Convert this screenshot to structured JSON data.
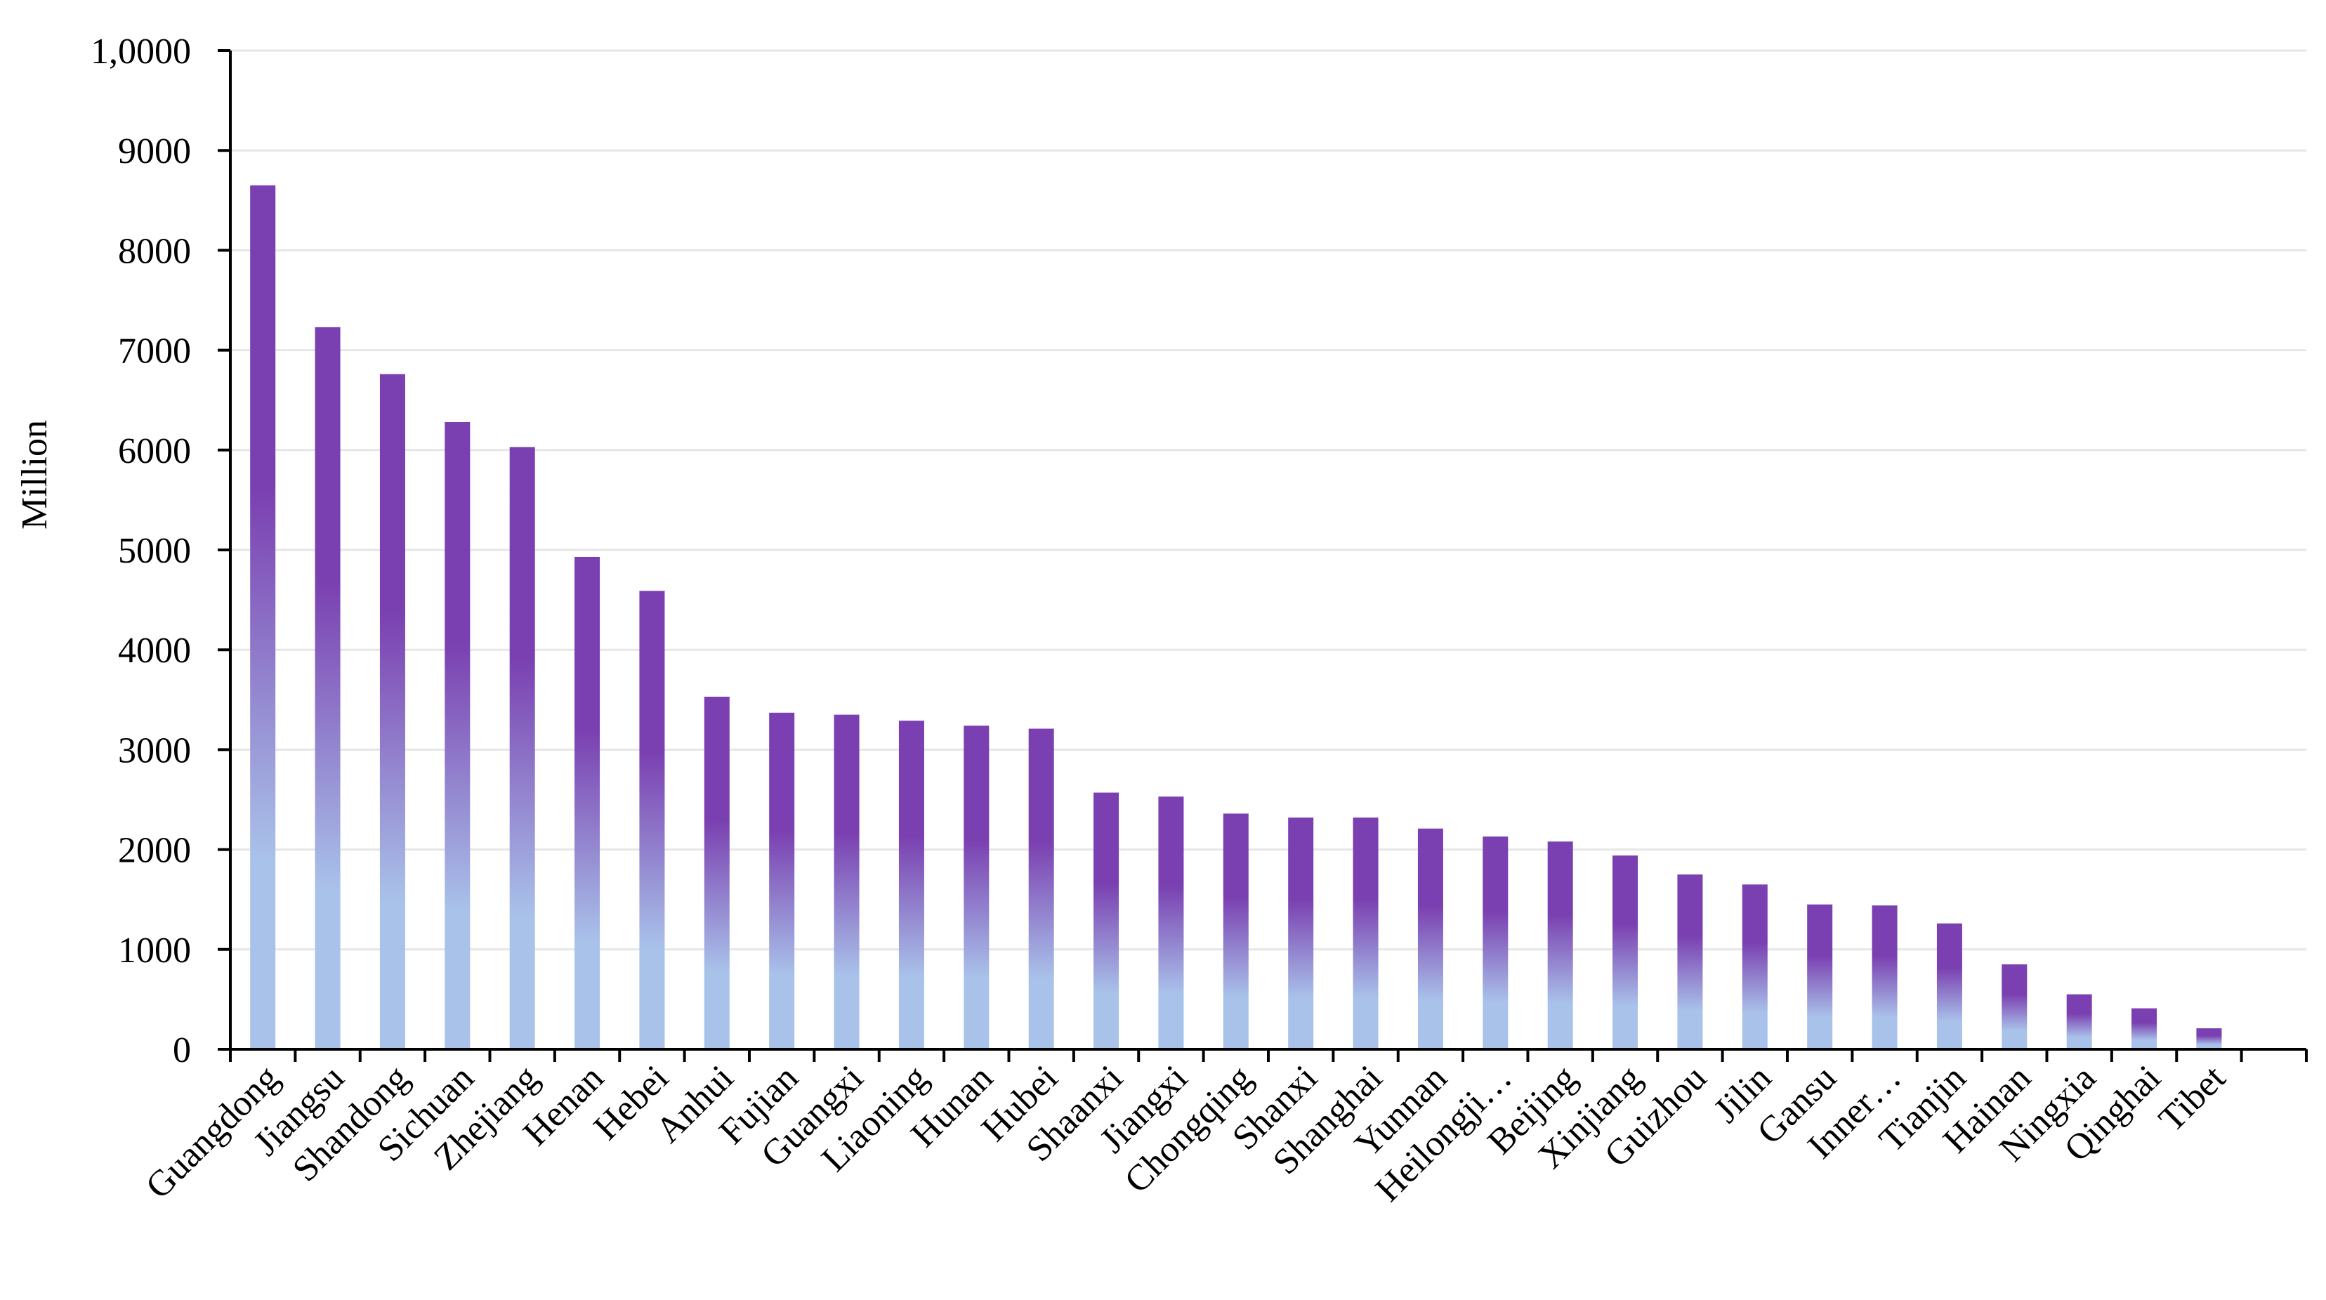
{
  "chart_data": {
    "type": "bar",
    "ylabel": "Million",
    "xlabel": "",
    "title": "",
    "ylim": [
      0,
      10000
    ],
    "grid": true,
    "legend": "none",
    "y_ticks": [
      {
        "value": 0,
        "label": "0"
      },
      {
        "value": 1000,
        "label": "1000"
      },
      {
        "value": 2000,
        "label": "2000"
      },
      {
        "value": 3000,
        "label": "3000"
      },
      {
        "value": 4000,
        "label": "4000"
      },
      {
        "value": 5000,
        "label": "5000"
      },
      {
        "value": 6000,
        "label": "6000"
      },
      {
        "value": 7000,
        "label": "7000"
      },
      {
        "value": 8000,
        "label": "8000"
      },
      {
        "value": 9000,
        "label": "9000"
      },
      {
        "value": 10000,
        "label": "1,0000"
      }
    ],
    "categories": [
      "Guangdong",
      "Jiangsu",
      "Shandong",
      "Sichuan",
      "Zhejiang",
      "Henan",
      "Hebei",
      "Anhui",
      "Fujian",
      "Guangxi",
      "Liaoning",
      "Hunan",
      "Hubei",
      "Shaanxi",
      "Jiangxi",
      "Chongqing",
      "Shanxi",
      "Shanghai",
      "Yunnan",
      "Heilongji…",
      "Beijing",
      "Xinjiang",
      "Guizhou",
      "Jilin",
      "Gansu",
      "Inner…",
      "Tianjin",
      "Hainan",
      "Ningxia",
      "Qinghai",
      "Tibet",
      ""
    ],
    "values": [
      8650,
      7230,
      6760,
      6280,
      6030,
      4930,
      4590,
      3530,
      3370,
      3350,
      3290,
      3240,
      3210,
      2570,
      2530,
      2360,
      2320,
      2320,
      2210,
      2130,
      2080,
      1940,
      1750,
      1650,
      1450,
      1440,
      1260,
      850,
      550,
      410,
      210,
      null
    ],
    "colors": {
      "bar_top": "#7a3fb0",
      "bar_bottom": "#a9c2ea",
      "axis": "#000000",
      "grid": "#e6e6e6"
    }
  }
}
